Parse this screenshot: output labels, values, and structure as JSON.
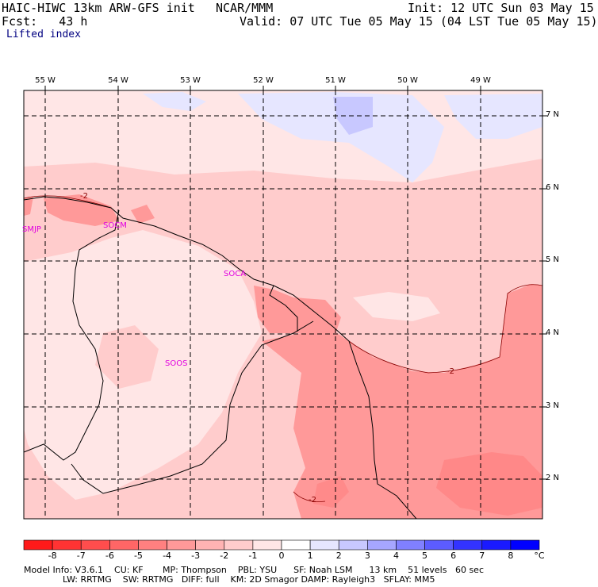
{
  "header": {
    "model": "HAIC-HIWC 13km ARW-GFS init",
    "org": "NCAR/MMM",
    "init": "Init: 12 UTC Sun 03 May 15",
    "fcst": "Fcst:   43 h",
    "valid": "Valid: 07 UTC Tue 05 May 15 (04 LST Tue 05 May 15)",
    "field": "Lifted index"
  },
  "map": {
    "lon_labels": [
      "55 W",
      "54 W",
      "53 W",
      "52 W",
      "51 W",
      "50 W",
      "49 W"
    ],
    "lat_labels": [
      "7 N",
      "6 N",
      "5 N",
      "4 N",
      "3 N",
      "2 N"
    ],
    "stations": [
      {
        "id": "smjp",
        "label": "SMJP"
      },
      {
        "id": "socm",
        "label": "SOCM"
      },
      {
        "id": "soca",
        "label": "SOCA"
      },
      {
        "id": "soos",
        "label": "SOOS"
      }
    ],
    "contour_labels": [
      "-2",
      "-2",
      "-2"
    ]
  },
  "colorbar": {
    "levels": [
      "-8",
      "-7",
      "-6",
      "-5",
      "-4",
      "-3",
      "-2",
      "-1",
      "0",
      "1",
      "2",
      "3",
      "4",
      "5",
      "6",
      "7",
      "8"
    ],
    "unit": "°C",
    "colors": [
      "#ff1a1a",
      "#ff3333",
      "#ff4d4d",
      "#ff6666",
      "#ff8080",
      "#ff9999",
      "#ffb3b3",
      "#ffcccc",
      "#ffe6e6",
      "#ffffff",
      "#e6e6ff",
      "#c8c8ff",
      "#a6a6ff",
      "#8080ff",
      "#5c5cff",
      "#3333ff",
      "#1a1aff",
      "#0000ff"
    ]
  },
  "info": {
    "line1": "Model Info: V3.6.1    CU: KF       MP: Thompson    PBL: YSU      SF: Noah LSM      13 km    51 levels   60 sec",
    "line2": "              LW: RRTMG    SW: RRTMG   DIFF: full    KM: 2D Smagor DAMP: Rayleigh3   SFLAY: MM5"
  }
}
